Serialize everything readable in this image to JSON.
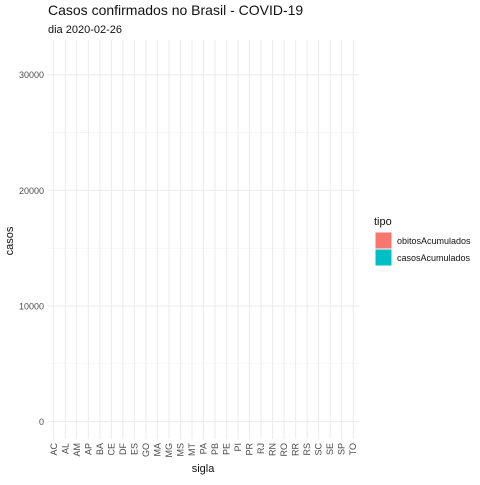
{
  "chart_data": {
    "type": "bar",
    "title": "Casos confirmados no Brasil - COVID-19",
    "subtitle": "dia 2020-02-26",
    "xlabel": "sigla",
    "ylabel": "casos",
    "categories": [
      "AC",
      "AL",
      "AM",
      "AP",
      "BA",
      "CE",
      "DF",
      "ES",
      "GO",
      "MA",
      "MG",
      "MS",
      "MT",
      "PA",
      "PB",
      "PE",
      "PI",
      "PR",
      "RJ",
      "RN",
      "RO",
      "RR",
      "RS",
      "SC",
      "SE",
      "SP",
      "TO"
    ],
    "ylim": [
      -1500,
      33000
    ],
    "yticks": [
      0,
      10000,
      20000,
      30000
    ],
    "series": [
      {
        "name": "obitosAcumulados",
        "color": "#F8766D",
        "values": [
          0,
          0,
          0,
          0,
          0,
          0,
          0,
          0,
          0,
          0,
          0,
          0,
          0,
          0,
          0,
          0,
          0,
          0,
          0,
          0,
          0,
          0,
          0,
          0,
          0,
          0,
          0
        ]
      },
      {
        "name": "casosAcumulados",
        "color": "#00BFC4",
        "values": [
          0,
          0,
          0,
          0,
          0,
          0,
          0,
          0,
          0,
          0,
          0,
          0,
          0,
          0,
          0,
          0,
          0,
          0,
          0,
          0,
          0,
          0,
          0,
          0,
          0,
          0,
          0
        ]
      }
    ],
    "legend": {
      "title": "tipo",
      "position": "right"
    },
    "grid": true
  }
}
